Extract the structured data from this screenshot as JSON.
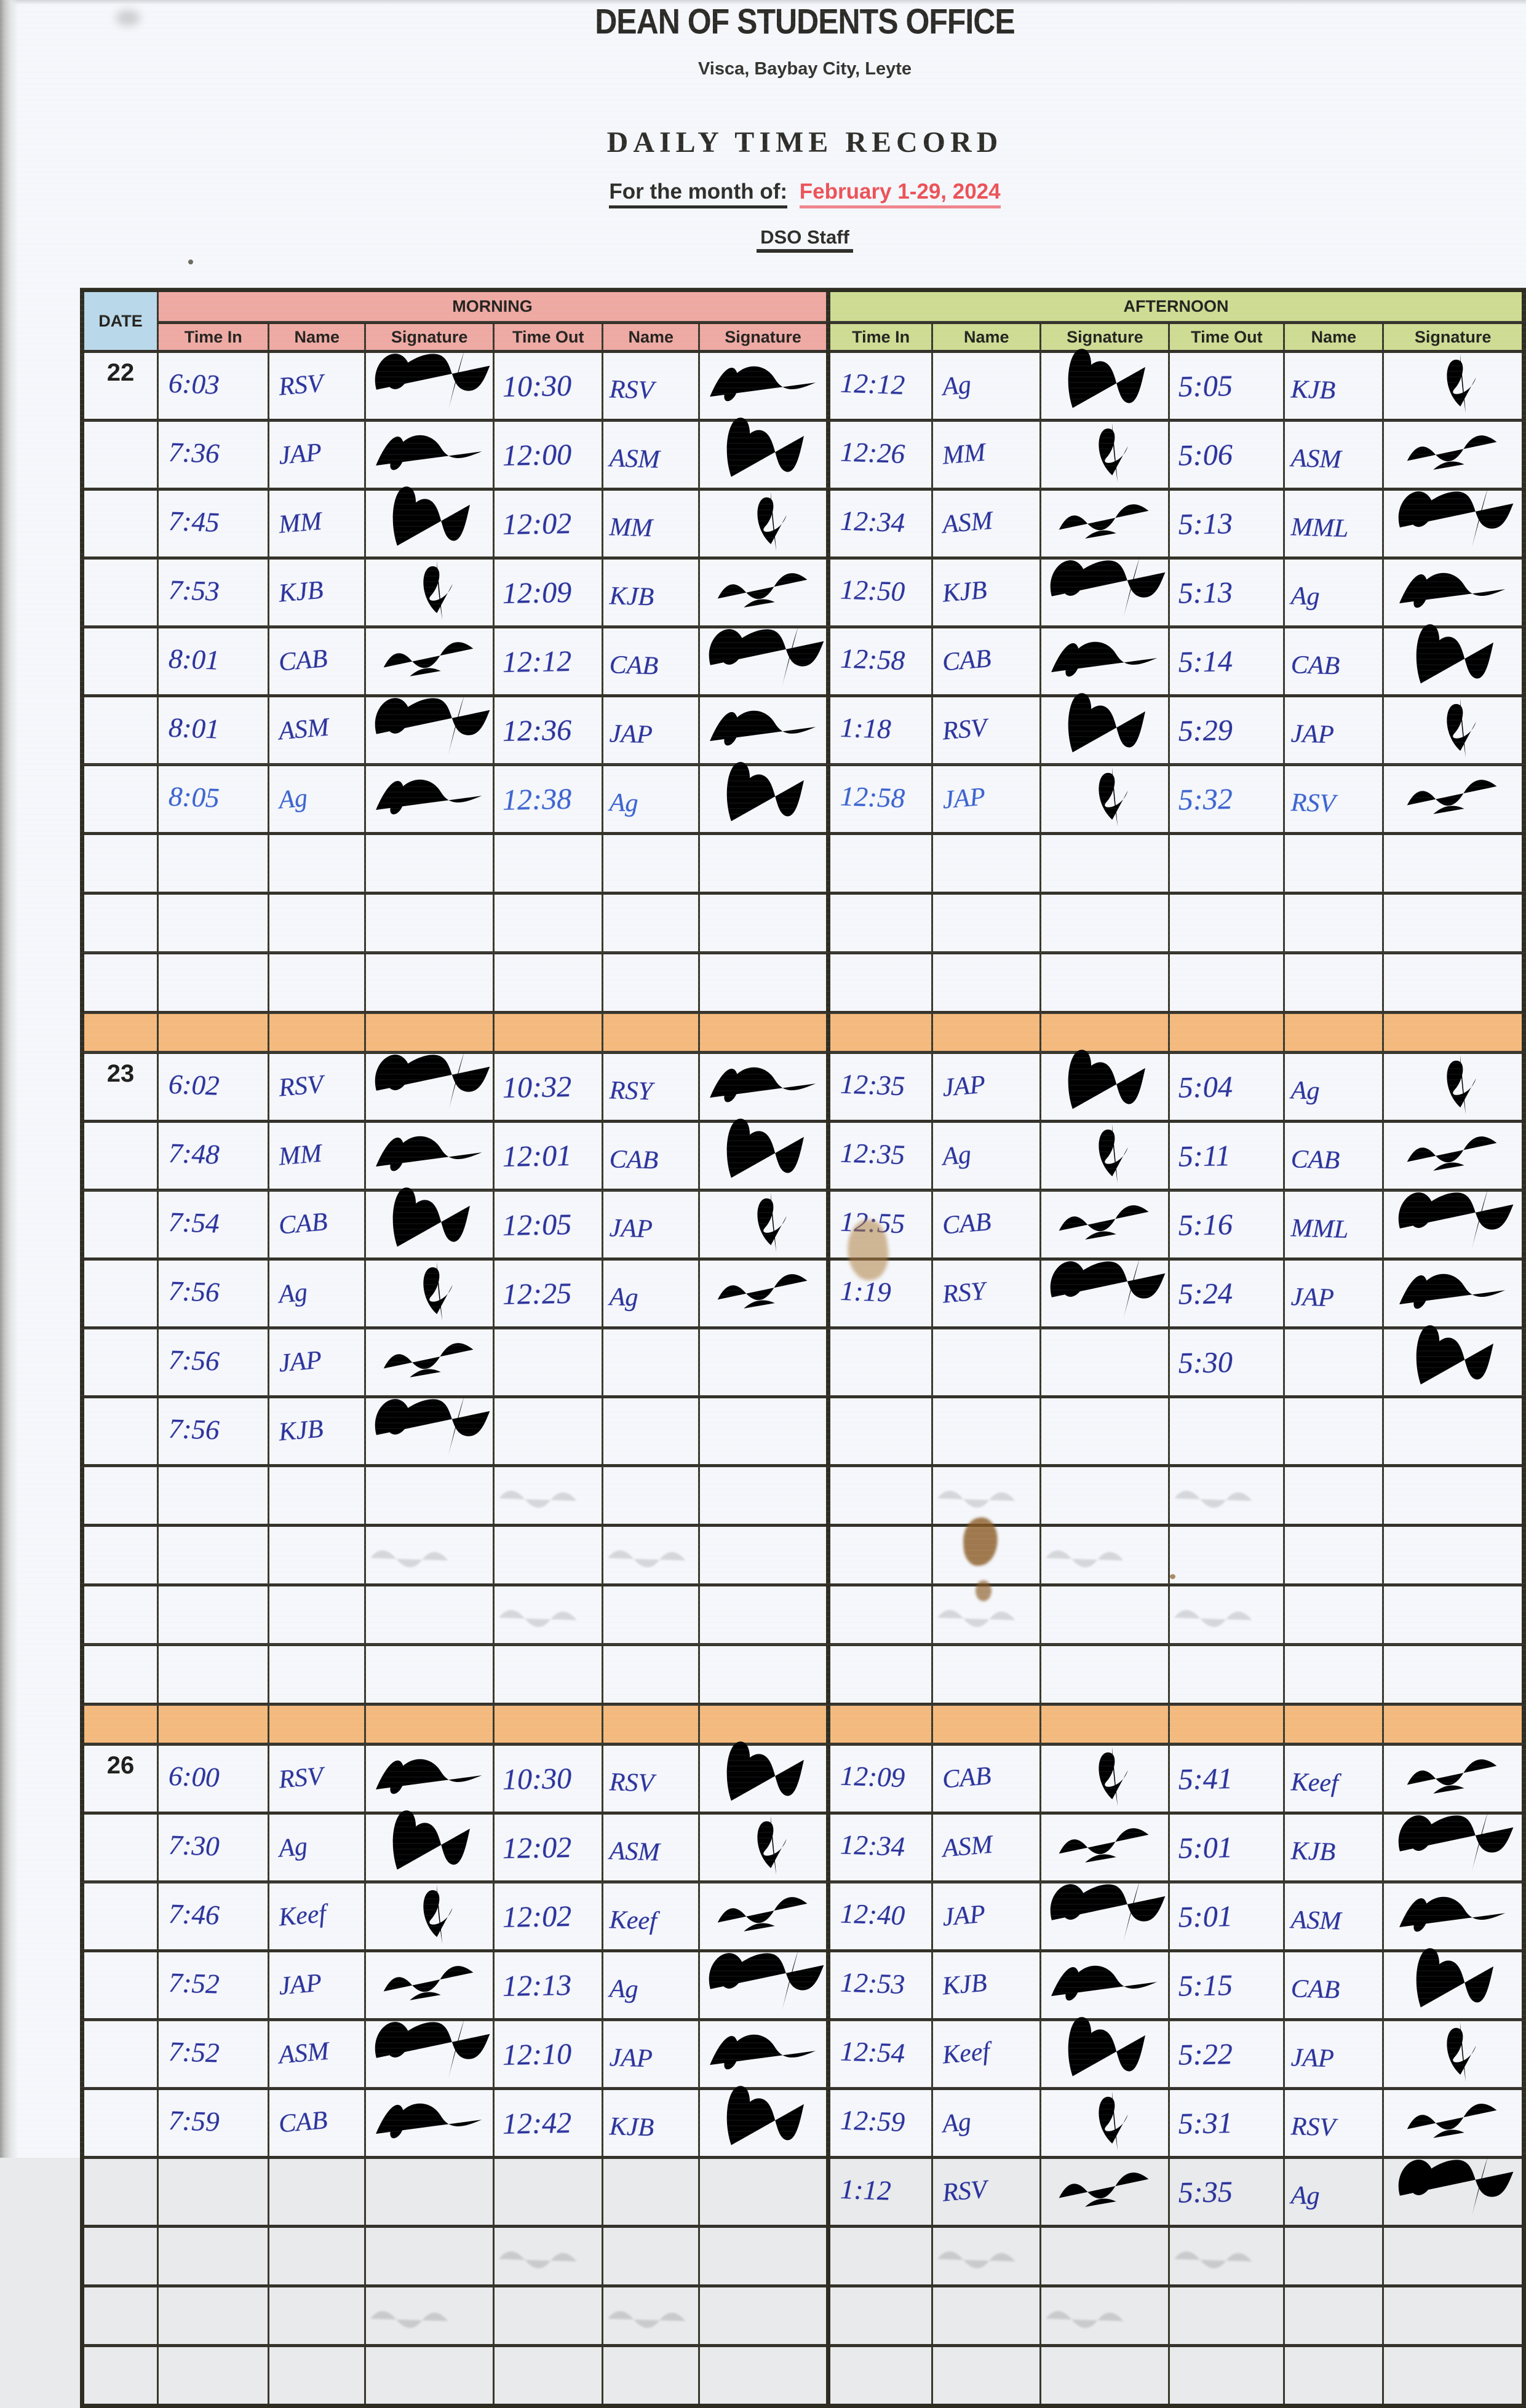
{
  "header": {
    "office": "DEAN OF STUDENTS OFFICE",
    "address": "Visca, Baybay City, Leyte",
    "doc_title": "DAILY TIME RECORD",
    "month_label": "For the month of:",
    "month_value": "February 1-29, 2024",
    "staff": "DSO Staff"
  },
  "table": {
    "date_header": "DATE",
    "group_headers": [
      "MORNING",
      "AFTERNOON"
    ],
    "sub_headers": [
      "Time In",
      "Name",
      "Signature",
      "Time Out",
      "Name",
      "Signature"
    ],
    "colors": {
      "morning_header": "#efa9a3",
      "afternoon_header": "#cedc93",
      "date_header": "#b9d8e9",
      "separator_row": "#f4ba7d",
      "ink": "#2b339b",
      "month_red": "#ec5257"
    }
  },
  "blocks": [
    {
      "date": "22",
      "rows": [
        {
          "m": [
            "6:03",
            "RSV",
            "10:30",
            "RSV"
          ],
          "a": [
            "12:12",
            "Ag",
            "5:05",
            "KJB"
          ],
          "sigs": [
            1,
            1,
            1,
            1
          ]
        },
        {
          "m": [
            "7:36",
            "JAP",
            "12:00",
            "ASM"
          ],
          "a": [
            "12:26",
            "MM",
            "5:06",
            "ASM"
          ],
          "sigs": [
            1,
            1,
            1,
            1
          ]
        },
        {
          "m": [
            "7:45",
            "MM",
            "12:02",
            "MM"
          ],
          "a": [
            "12:34",
            "ASM",
            "5:13",
            "MML"
          ],
          "sigs": [
            1,
            1,
            1,
            1
          ]
        },
        {
          "m": [
            "7:53",
            "KJB",
            "12:09",
            "KJB"
          ],
          "a": [
            "12:50",
            "KJB",
            "5:13",
            "Ag"
          ],
          "sigs": [
            1,
            1,
            1,
            1
          ]
        },
        {
          "m": [
            "8:01",
            "CAB",
            "12:12",
            "CAB"
          ],
          "a": [
            "12:58",
            "CAB",
            "5:14",
            "CAB"
          ],
          "sigs": [
            1,
            1,
            1,
            1
          ]
        },
        {
          "m": [
            "8:01",
            "ASM",
            "12:36",
            "JAP"
          ],
          "a": [
            "1:18",
            "RSV",
            "5:29",
            "JAP"
          ],
          "sigs": [
            1,
            1,
            1,
            1
          ]
        },
        {
          "m": [
            "8:05",
            "Ag",
            "12:38",
            "Ag"
          ],
          "a": [
            "12:58",
            "JAP",
            "5:32",
            "RSV"
          ],
          "sigs": [
            1,
            1,
            1,
            1
          ],
          "pen": "light"
        }
      ],
      "empty_rows": 3,
      "separator_after": true,
      "bleed_through": false
    },
    {
      "date": "23",
      "rows": [
        {
          "m": [
            "6:02",
            "RSV",
            "10:32",
            "RSY"
          ],
          "a": [
            "12:35",
            "JAP",
            "5:04",
            "Ag"
          ],
          "sigs": [
            1,
            1,
            1,
            1
          ]
        },
        {
          "m": [
            "7:48",
            "MM",
            "12:01",
            "CAB"
          ],
          "a": [
            "12:35",
            "Ag",
            "5:11",
            "CAB"
          ],
          "sigs": [
            1,
            1,
            1,
            1
          ]
        },
        {
          "m": [
            "7:54",
            "CAB",
            "12:05",
            "JAP"
          ],
          "a": [
            "12:55",
            "CAB",
            "5:16",
            "MML"
          ],
          "sigs": [
            1,
            1,
            1,
            1
          ]
        },
        {
          "m": [
            "7:56",
            "Ag",
            "12:25",
            "Ag"
          ],
          "a": [
            "1:19",
            "RSY",
            "5:24",
            "JAP"
          ],
          "sigs": [
            1,
            1,
            1,
            1
          ]
        },
        {
          "m": [
            "7:56",
            "JAP",
            "",
            ""
          ],
          "a": [
            "",
            "",
            "5:30",
            ""
          ],
          "sigs": [
            1,
            0,
            0,
            1
          ]
        },
        {
          "m": [
            "7:56",
            "KJB",
            "",
            ""
          ],
          "a": [
            "",
            "",
            "",
            ""
          ],
          "sigs": [
            1,
            0,
            0,
            0
          ]
        }
      ],
      "empty_rows": 4,
      "separator_after": true,
      "bleed_through": true
    },
    {
      "date": "26",
      "rows": [
        {
          "m": [
            "6:00",
            "RSV",
            "10:30",
            "RSV"
          ],
          "a": [
            "12:09",
            "CAB",
            "5:41",
            "Keef"
          ],
          "sigs": [
            1,
            1,
            1,
            1
          ]
        },
        {
          "m": [
            "7:30",
            "Ag",
            "12:02",
            "ASM"
          ],
          "a": [
            "12:34",
            "ASM",
            "5:01",
            "KJB"
          ],
          "sigs": [
            1,
            1,
            1,
            1
          ]
        },
        {
          "m": [
            "7:46",
            "Keef",
            "12:02",
            "Keef"
          ],
          "a": [
            "12:40",
            "JAP",
            "5:01",
            "ASM"
          ],
          "sigs": [
            1,
            1,
            1,
            1
          ]
        },
        {
          "m": [
            "7:52",
            "JAP",
            "12:13",
            "Ag"
          ],
          "a": [
            "12:53",
            "KJB",
            "5:15",
            "CAB"
          ],
          "sigs": [
            1,
            1,
            1,
            1
          ]
        },
        {
          "m": [
            "7:52",
            "ASM",
            "12:10",
            "JAP"
          ],
          "a": [
            "12:54",
            "Keef",
            "5:22",
            "JAP"
          ],
          "sigs": [
            1,
            1,
            1,
            1
          ]
        },
        {
          "m": [
            "7:59",
            "CAB",
            "12:42",
            "KJB"
          ],
          "a": [
            "12:59",
            "Ag",
            "5:31",
            "RSV"
          ],
          "sigs": [
            1,
            1,
            1,
            1
          ]
        },
        {
          "m": [
            "",
            "",
            "",
            ""
          ],
          "a": [
            "1:12",
            "RSV",
            "5:35",
            "Ag"
          ],
          "sigs": [
            0,
            0,
            1,
            1
          ]
        }
      ],
      "empty_rows": 3,
      "separator_after": false,
      "bleed_through": true
    }
  ]
}
